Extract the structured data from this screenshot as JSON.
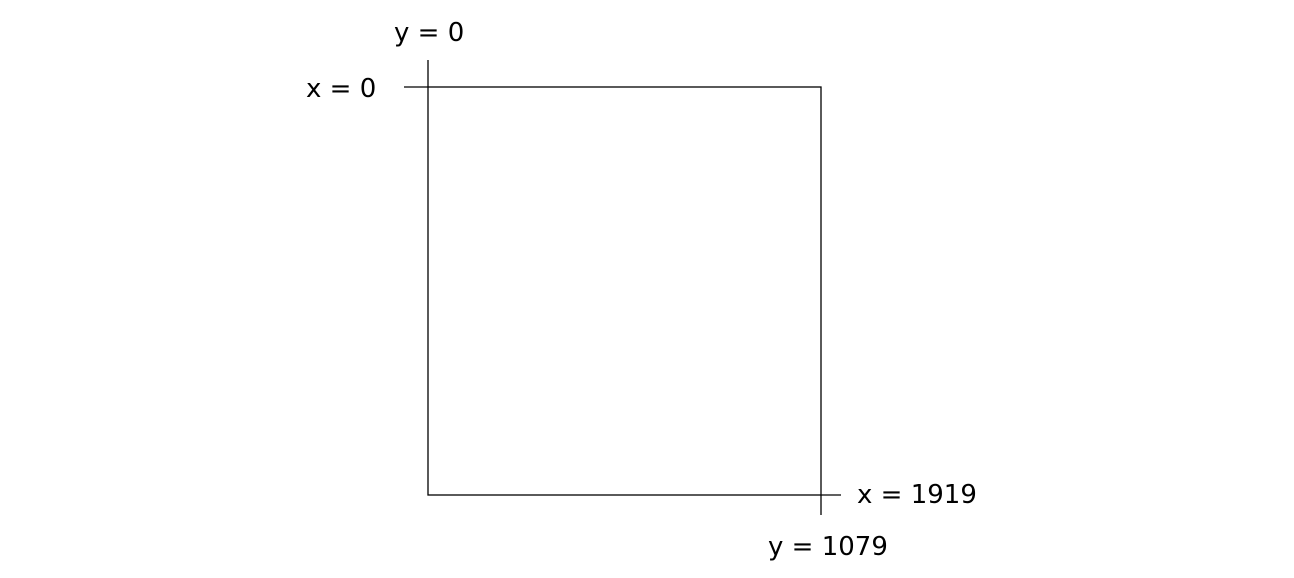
{
  "labels": {
    "top_left_y": "y = 0",
    "top_left_x": "x = 0",
    "bottom_right_x": "x = 1919",
    "bottom_right_y": "y = 1079"
  },
  "colors": {
    "line": "#000000",
    "background": "#ffffff"
  }
}
